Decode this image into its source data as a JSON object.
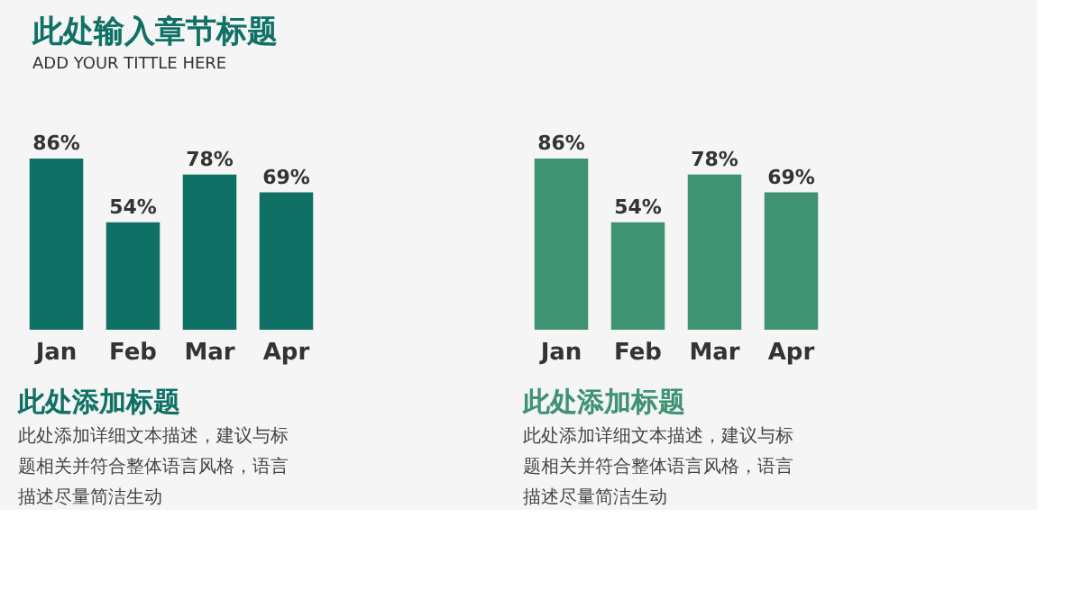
{
  "chart_data": [
    {
      "type": "bar",
      "title": "此处添加标题",
      "subtitle": "此处添加详细文本描述，建议与标题相关并符合整体语言风格，语言描述尽量简洁生动",
      "annotations": [
        "此处输入章节标题",
        "ADD YOUR TITTLE HERE"
      ],
      "categories": [
        "Jan",
        "Feb",
        "Mar",
        "Apr"
      ],
      "values": [
        86,
        54,
        78,
        69
      ],
      "value_labels": [
        "86%",
        "54%",
        "78%",
        "69%"
      ],
      "color": "#0f7165",
      "grid": false,
      "legend": false
    },
    {
      "type": "bar",
      "title": "此处添加标题",
      "subtitle": "此处添加详细文本描述，建议与标题相关并符合整体语言风格，语言描述尽量简洁生动",
      "categories": [
        "Jan",
        "Feb",
        "Mar",
        "Apr"
      ],
      "values": [
        86,
        54,
        78,
        69
      ],
      "value_labels": [
        "86%",
        "54%",
        "78%",
        "69%"
      ],
      "color": "#3f9272",
      "grid": false,
      "legend": false
    }
  ]
}
